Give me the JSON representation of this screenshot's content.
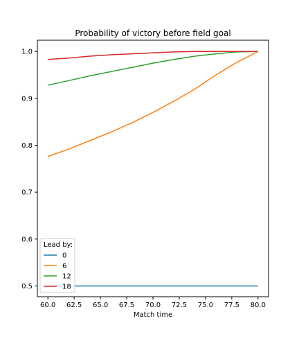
{
  "chart_data": {
    "type": "line",
    "title": "Probability of victory before field goal",
    "xlabel": "Match time",
    "ylabel": "",
    "xlim": [
      59.0,
      81.0
    ],
    "ylim": [
      0.477,
      1.024
    ],
    "xticks": [
      "60.0",
      "62.5",
      "65.0",
      "67.5",
      "70.0",
      "72.5",
      "75.0",
      "77.5",
      "80.0"
    ],
    "yticks": [
      "0.5",
      "0.6",
      "0.7",
      "0.8",
      "0.9",
      "1.0"
    ],
    "grid": false,
    "legend": {
      "title": "Lead by:",
      "placement": "lower-left"
    },
    "series": [
      {
        "name": "0",
        "color": "#1f77b4",
        "x": [
          60,
          62,
          64,
          66,
          68,
          70,
          72,
          74,
          76,
          78,
          80
        ],
        "y": [
          0.5,
          0.5,
          0.5,
          0.5,
          0.5,
          0.5,
          0.5,
          0.5,
          0.5,
          0.5,
          0.5
        ]
      },
      {
        "name": "6",
        "color": "#ff7f0e",
        "x": [
          60,
          62,
          64,
          66,
          68,
          70,
          72,
          74,
          76,
          78,
          80
        ],
        "y": [
          0.776,
          0.792,
          0.81,
          0.828,
          0.848,
          0.87,
          0.894,
          0.92,
          0.95,
          0.977,
          1.0
        ]
      },
      {
        "name": "12",
        "color": "#2ca02c",
        "x": [
          60,
          62,
          64,
          66,
          68,
          70,
          72,
          74,
          76,
          78,
          80
        ],
        "y": [
          0.928,
          0.938,
          0.948,
          0.957,
          0.966,
          0.975,
          0.983,
          0.99,
          0.995,
          0.999,
          1.0
        ]
      },
      {
        "name": "18",
        "color": "#d62728",
        "x": [
          60,
          62,
          64,
          66,
          68,
          70,
          72,
          74,
          76,
          78,
          80
        ],
        "y": [
          0.983,
          0.986,
          0.99,
          0.993,
          0.995,
          0.997,
          0.999,
          1.0,
          1.0,
          1.0,
          1.0
        ]
      }
    ]
  }
}
